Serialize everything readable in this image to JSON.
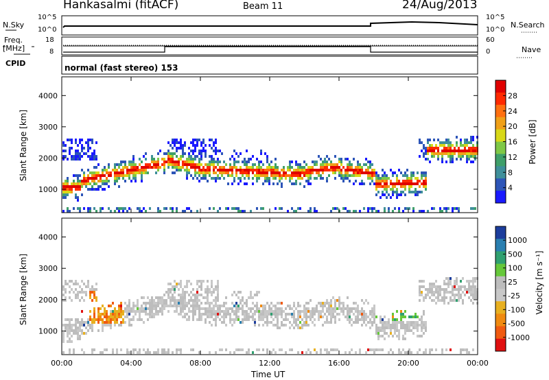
{
  "header": {
    "site": "Hankasalmi (fitACF)",
    "beam": "Beam 11",
    "date": "24/Aug/2013"
  },
  "noise_panel": {
    "left_label": "N.Sky",
    "right_label": "N.Search",
    "left_ticks": [
      "10^5",
      "10^0"
    ],
    "right_ticks": [
      "10^5",
      "10^0"
    ]
  },
  "freq_panel": {
    "left_label_1": "Freq.",
    "left_label_2": "[MHz]",
    "right_label": "Nave",
    "left_ticks": [
      "18",
      "8"
    ],
    "right_ticks": [
      "60",
      "0"
    ]
  },
  "cpid": {
    "label": "CPID",
    "text": "normal (fast stereo) 153"
  },
  "chart_data": [
    {
      "type": "heatmap",
      "ylabel": "Slant Range [km]",
      "y_ticks": [
        "1000",
        "2000",
        "3000",
        "4000"
      ],
      "ylim": [
        250,
        4600
      ],
      "x_ticks": [
        "00:00",
        "04:00",
        "08:00",
        "12:00",
        "16:00",
        "20:00",
        "00:00"
      ],
      "colorbar": {
        "label": "Power [dB]",
        "ticks": [
          "4",
          "8",
          "12",
          "16",
          "20",
          "24",
          "28"
        ],
        "colors": [
          "#1a1aff",
          "#2d55b8",
          "#3f8f9a",
          "#3f9f6a",
          "#7fc846",
          "#d8d818",
          "#f0a018",
          "#ff7010",
          "#ff2a00",
          "#e00000"
        ]
      }
    },
    {
      "type": "heatmap",
      "ylabel": "Slant Range [km]",
      "y_ticks": [
        "1000",
        "2000",
        "3000",
        "4000"
      ],
      "ylim": [
        250,
        4600
      ],
      "x_ticks": [
        "00:00",
        "04:00",
        "08:00",
        "12:00",
        "16:00",
        "20:00",
        "00:00"
      ],
      "xlabel": "Time UT",
      "colorbar": {
        "label": "Velocity [m s⁻¹]",
        "ticks": [
          "1000",
          "500",
          "100",
          "25",
          "-25",
          "-100",
          "-500",
          "-1000"
        ],
        "colors": [
          "#1c3d9c",
          "#2a7fb0",
          "#30a070",
          "#66c83a",
          "#bdbdbd",
          "#c8c8c8",
          "#e8b020",
          "#f08a10",
          "#f05a10",
          "#e01010"
        ]
      }
    }
  ]
}
